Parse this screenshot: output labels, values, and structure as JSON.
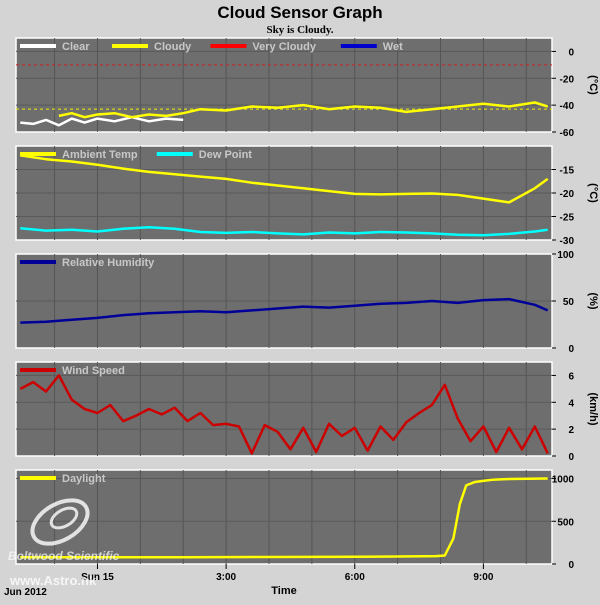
{
  "header": {
    "title": "Cloud Sensor Graph",
    "subtitle": "Sky is Cloudy."
  },
  "footer": {
    "date_label": "Jun 2012",
    "xlabel": "Time",
    "watermark_brand": "Boltwood Scientific",
    "watermark_url": "www.Astro.nk"
  },
  "x_ticks": [
    {
      "label": "Sun 15",
      "hour": 0
    },
    {
      "label": "3:00",
      "hour": 3
    },
    {
      "label": "6:00",
      "hour": 6
    },
    {
      "label": "9:00",
      "hour": 9
    }
  ],
  "chart_data": [
    {
      "type": "line",
      "name": "sky-temperature",
      "ylabel": "(°C)",
      "ylim": [
        -60,
        10
      ],
      "yticks": [
        0,
        -20,
        -40,
        -60
      ],
      "ref_lines": [
        {
          "y": -10,
          "color": "#cc2222"
        },
        {
          "y": -43,
          "color": "#eeee00"
        }
      ],
      "legend": [
        {
          "label": "Clear",
          "color": "#ffffff"
        },
        {
          "label": "Cloudy",
          "color": "#ffff00"
        },
        {
          "label": "Very Cloudy",
          "color": "#ff0000"
        },
        {
          "label": "Wet",
          "color": "#0000cc"
        }
      ],
      "series": [
        {
          "color": "#ffffff",
          "x": [
            -1.8,
            -1.5,
            -1.2,
            -0.9,
            -0.6,
            -0.3,
            0.0,
            0.4,
            0.8,
            1.2,
            1.6,
            2.0
          ],
          "y": [
            -53,
            -54,
            -51,
            -55,
            -50,
            -53,
            -50,
            -52,
            -49,
            -52,
            -50,
            -51
          ]
        },
        {
          "color": "#ffff00",
          "x": [
            -0.9,
            -0.6,
            -0.3,
            0.0,
            0.4,
            0.8,
            1.2,
            1.6,
            2.0,
            2.4,
            3.0,
            3.6,
            4.2,
            4.8,
            5.4,
            6.0,
            6.6,
            7.2,
            7.8,
            8.4,
            9.0,
            9.6,
            10.2,
            10.5
          ],
          "y": [
            -48,
            -46,
            -49,
            -47,
            -46,
            -49,
            -47,
            -48,
            -46,
            -43,
            -44,
            -41,
            -42,
            -40,
            -43,
            -41,
            -42,
            -45,
            -43,
            -41,
            -39,
            -41,
            -38,
            -41
          ]
        }
      ]
    },
    {
      "type": "line",
      "name": "temperatures",
      "ylabel": "(°C)",
      "ylim": [
        -30,
        -10
      ],
      "yticks": [
        -15,
        -20,
        -25,
        -30
      ],
      "legend": [
        {
          "label": "Ambient Temp",
          "color": "#ffff00"
        },
        {
          "label": "Dew Point",
          "color": "#00ffff"
        }
      ],
      "series": [
        {
          "color": "#ffff00",
          "x": [
            -1.8,
            -1.2,
            -0.6,
            0.0,
            0.6,
            1.2,
            1.8,
            2.4,
            3.0,
            3.6,
            4.2,
            4.8,
            5.4,
            6.0,
            6.6,
            7.2,
            7.8,
            8.4,
            9.0,
            9.6,
            10.2,
            10.5
          ],
          "y": [
            -12,
            -12.8,
            -13.3,
            -14,
            -14.8,
            -15.5,
            -16,
            -16.5,
            -17,
            -17.8,
            -18.4,
            -19,
            -19.6,
            -20.2,
            -20.3,
            -20.2,
            -20.1,
            -20.4,
            -21.2,
            -22,
            -19,
            -17
          ]
        },
        {
          "color": "#00ffff",
          "x": [
            -1.8,
            -1.2,
            -0.6,
            0.0,
            0.6,
            1.2,
            1.8,
            2.4,
            3.0,
            3.6,
            4.2,
            4.8,
            5.4,
            6.0,
            6.6,
            7.2,
            7.8,
            8.4,
            9.0,
            9.6,
            10.2,
            10.5
          ],
          "y": [
            -27.5,
            -28,
            -27.8,
            -28.2,
            -27.6,
            -27.3,
            -27.6,
            -28.3,
            -28.5,
            -28.3,
            -28.6,
            -28.8,
            -28.4,
            -28.6,
            -28.3,
            -28.4,
            -28.6,
            -28.9,
            -29,
            -28.7,
            -28.2,
            -27.8
          ]
        }
      ]
    },
    {
      "type": "line",
      "name": "humidity",
      "ylabel": "(%)",
      "ylim": [
        0,
        100
      ],
      "yticks": [
        100,
        50,
        0
      ],
      "legend": [
        {
          "label": "Relative Humidity",
          "color": "#000099"
        }
      ],
      "series": [
        {
          "color": "#000099",
          "x": [
            -1.8,
            -1.2,
            -0.6,
            0.0,
            0.6,
            1.2,
            1.8,
            2.4,
            3.0,
            3.6,
            4.2,
            4.8,
            5.4,
            6.0,
            6.6,
            7.2,
            7.8,
            8.4,
            9.0,
            9.6,
            10.2,
            10.5
          ],
          "y": [
            27,
            28,
            30,
            32,
            35,
            37,
            38,
            39,
            38,
            40,
            42,
            44,
            43,
            45,
            47,
            48,
            50,
            48,
            51,
            52,
            46,
            40
          ]
        }
      ]
    },
    {
      "type": "line",
      "name": "wind-speed",
      "ylabel": "(km/h)",
      "ylim": [
        0,
        7
      ],
      "yticks": [
        6,
        4,
        2,
        0
      ],
      "legend": [
        {
          "label": "Wind Speed",
          "color": "#cc0000"
        }
      ],
      "series": [
        {
          "color": "#cc0000",
          "x": [
            -1.8,
            -1.5,
            -1.2,
            -0.9,
            -0.6,
            -0.3,
            0.0,
            0.3,
            0.6,
            0.9,
            1.2,
            1.5,
            1.8,
            2.1,
            2.4,
            2.7,
            3.0,
            3.3,
            3.6,
            3.9,
            4.2,
            4.5,
            4.8,
            5.1,
            5.4,
            5.7,
            6.0,
            6.3,
            6.6,
            6.9,
            7.2,
            7.5,
            7.8,
            8.1,
            8.4,
            8.7,
            9.0,
            9.3,
            9.6,
            9.9,
            10.2,
            10.5
          ],
          "y": [
            5,
            5.5,
            4.8,
            6,
            4.2,
            3.5,
            3.2,
            3.8,
            2.6,
            3,
            3.5,
            3.1,
            3.6,
            2.6,
            3.2,
            2.3,
            2.4,
            2.2,
            0.2,
            2.3,
            1.8,
            0.5,
            2.1,
            0.3,
            2.4,
            1.5,
            2.1,
            0.4,
            2.2,
            1.2,
            2.5,
            3.2,
            3.8,
            5.3,
            2.8,
            1.1,
            2.2,
            0.3,
            2.1,
            0.5,
            2.2,
            0.2
          ]
        }
      ]
    },
    {
      "type": "line",
      "name": "daylight",
      "ylabel": "",
      "ylim": [
        0,
        1100
      ],
      "yticks": [
        1000,
        500,
        0
      ],
      "legend": [
        {
          "label": "Daylight",
          "color": "#ffff00"
        }
      ],
      "series": [
        {
          "color": "#ffff00",
          "x": [
            -1.8,
            0.0,
            2.0,
            4.0,
            6.0,
            7.0,
            7.9,
            8.1,
            8.3,
            8.45,
            8.6,
            8.8,
            9.2,
            9.6,
            10.5
          ],
          "y": [
            80,
            78,
            80,
            82,
            85,
            88,
            92,
            100,
            300,
            700,
            920,
            960,
            985,
            995,
            1000
          ]
        }
      ]
    }
  ]
}
